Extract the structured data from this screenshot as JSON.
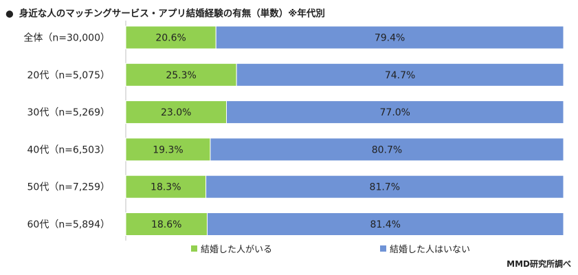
{
  "title": "身近な人のマッチングサービス・アプリ結婚経験の有無（単数）※年代別",
  "bullet": "●",
  "credit": "MMD研究所調べ",
  "colors": {
    "married": "#92d050",
    "not_married": "#6f93d6"
  },
  "chart_data": {
    "type": "bar",
    "orientation": "horizontal",
    "stacked": true,
    "percent_stacked": true,
    "categories": [
      "全体（n=30,000）",
      "20代（n=5,075）",
      "30代（n=5,269）",
      "40代（n=6,503）",
      "50代（n=7,259）",
      "60代（n=5,894）"
    ],
    "series": [
      {
        "name": "結婚した人がいる",
        "values": [
          20.6,
          25.3,
          23.0,
          19.3,
          18.3,
          18.6
        ],
        "labels": [
          "20.6%",
          "25.3%",
          "23.0%",
          "19.3%",
          "18.3%",
          "18.6%"
        ]
      },
      {
        "name": "結婚した人はいない",
        "values": [
          79.4,
          74.7,
          77.0,
          80.7,
          81.7,
          81.4
        ],
        "labels": [
          "79.4%",
          "74.7%",
          "77.0%",
          "80.7%",
          "81.7%",
          "81.4%"
        ]
      }
    ],
    "xlim": [
      0,
      100
    ],
    "legend_position": "bottom",
    "grid": false
  }
}
